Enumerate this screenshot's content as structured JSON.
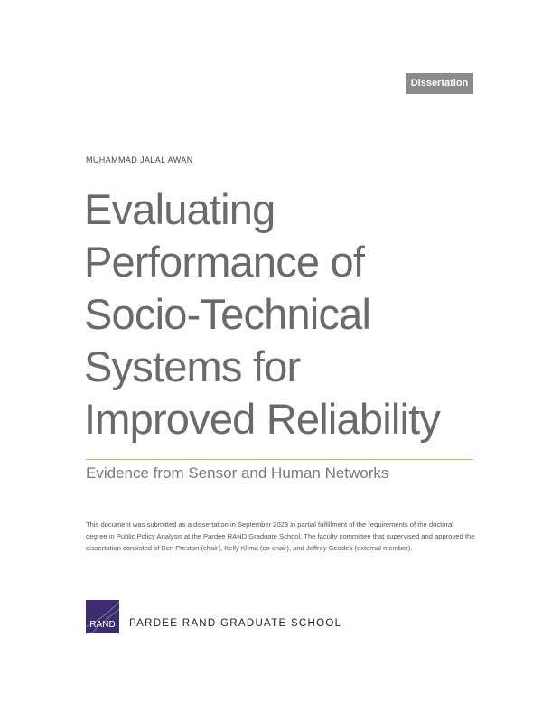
{
  "badge": "Dissertation",
  "author": "MUHAMMAD JALAL AWAN",
  "title_lines": [
    "Evaluating",
    "Performance of",
    "Socio-Technical",
    "Systems for",
    "Improved Reliability"
  ],
  "subtitle": "Evidence from Sensor and Human Networks",
  "note": "This document was submitted as a dissertation in September 2023 in partial fulfillment of the requirements of the doctoral degree in Public Policy Analysis  at the Pardee RAND Graduate School. The faculty committee that supervised and approved the dissertation consisted of Ben Preston (chair), Kelly Klima (co-chair), and Jeffrey Geddes (external member).",
  "logo_text": "RAND",
  "school": "PARDEE RAND GRADUATE SCHOOL"
}
